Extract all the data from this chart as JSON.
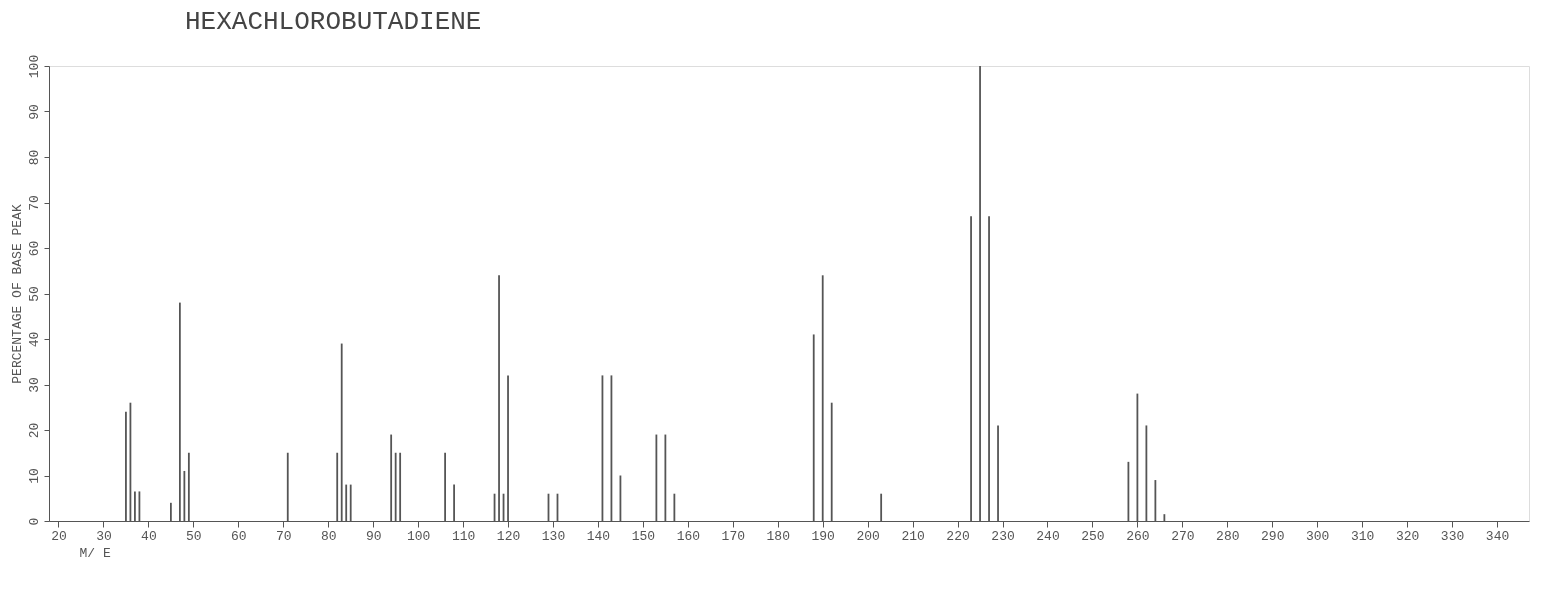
{
  "chart_data": {
    "type": "bar",
    "title": "HEXACHLOROBUTADIENE",
    "xlabel": "M/ E",
    "ylabel": "PERCENTAGE OF BASE PEAK",
    "x": [
      35,
      36,
      37,
      38,
      45,
      47,
      48,
      49,
      71,
      82,
      83,
      84,
      85,
      94,
      95,
      96,
      106,
      108,
      117,
      118,
      119,
      120,
      129,
      131,
      141,
      143,
      145,
      153,
      155,
      157,
      188,
      190,
      192,
      203,
      223,
      225,
      227,
      229,
      258,
      260,
      262,
      264,
      266
    ],
    "series": [
      {
        "color": "#555555",
        "values": [
          24,
          26,
          6.5,
          6.5,
          4,
          48,
          11,
          15,
          15,
          15,
          39,
          8,
          8,
          19,
          15,
          15,
          15,
          8,
          6,
          54,
          6,
          32,
          6,
          6,
          32,
          32,
          10,
          19,
          19,
          6,
          41,
          54,
          26,
          6,
          67,
          100,
          67,
          21,
          13,
          28,
          21,
          9,
          1.5
        ]
      }
    ],
    "xlim": [
      19,
      346
    ],
    "xticks": [
      20,
      30,
      40,
      50,
      60,
      70,
      80,
      90,
      100,
      110,
      120,
      130,
      140,
      150,
      160,
      170,
      180,
      190,
      200,
      210,
      220,
      230,
      240,
      250,
      260,
      270,
      280,
      290,
      300,
      310,
      320,
      330,
      340
    ],
    "ylim": [
      0,
      100
    ],
    "yticks": [
      0,
      10,
      20,
      30,
      40,
      50,
      60,
      70,
      80,
      90,
      100
    ],
    "grid": false
  }
}
